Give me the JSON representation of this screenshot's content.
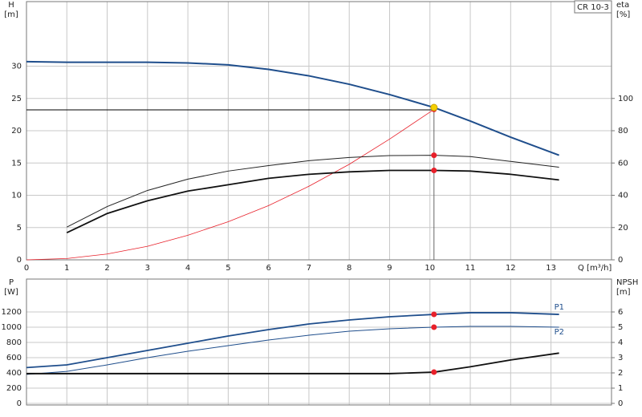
{
  "chart_data": [
    {
      "type": "line",
      "model": "CR 10-3",
      "ylabel": "H",
      "yunit": "[m]",
      "y2label": "eta",
      "y2unit": "[%]",
      "xlabel": "Q [m³/h]",
      "xlim": [
        0,
        14.5
      ],
      "xticks": [
        0,
        1,
        2,
        3,
        4,
        5,
        6,
        7,
        8,
        9,
        10,
        11,
        12,
        13
      ],
      "ylim": [
        0,
        40
      ],
      "yticks": [
        0,
        5,
        10,
        15,
        20,
        25,
        30
      ],
      "y2lim": [
        0,
        160
      ],
      "y2ticks": [
        0,
        20,
        40,
        60,
        80,
        100
      ],
      "grid": true,
      "highlight_x": 10.1,
      "highlight_color": "#e8202a",
      "duty_point": {
        "x": 10.1,
        "y": 23.6,
        "color": "#f5d000"
      },
      "series": [
        {
          "color": "#1f4e8c",
          "width": 2,
          "x": [
            0,
            1,
            2,
            3,
            4,
            5,
            6,
            7,
            8,
            9,
            10.1,
            11,
            12,
            13.2
          ],
          "values": [
            30.7,
            30.6,
            30.6,
            30.6,
            30.5,
            30.2,
            29.5,
            28.5,
            27.2,
            25.6,
            23.6,
            21.5,
            19.0,
            16.2
          ]
        },
        {
          "color": "#e8202a",
          "width": 0.8,
          "x": [
            0,
            1,
            2,
            3,
            4,
            5,
            6,
            7,
            8,
            9,
            10.1
          ],
          "values": [
            0,
            0.2,
            0.9,
            2.1,
            3.8,
            5.9,
            8.4,
            11.4,
            14.8,
            18.7,
            23.3
          ]
        },
        {
          "color": "#222222",
          "width": 1,
          "axis": "y2",
          "x": [
            1,
            2,
            3,
            4,
            5,
            6,
            7,
            8,
            9,
            10.1,
            11,
            12,
            13.2
          ],
          "values": [
            20.3,
            33,
            43,
            50,
            55,
            58.4,
            61.4,
            63.4,
            64.6,
            64.8,
            64,
            61,
            57.4
          ]
        },
        {
          "color": "#111111",
          "width": 1.8,
          "axis": "y2",
          "x": [
            1,
            2,
            3,
            4,
            5,
            6,
            7,
            8,
            9,
            10.1,
            11,
            12,
            13.2
          ],
          "values": [
            16.8,
            28.7,
            36.6,
            42.6,
            46.5,
            50.5,
            53,
            54.5,
            55.4,
            55.4,
            55,
            53,
            49.5
          ]
        }
      ]
    },
    {
      "type": "line",
      "ylabel": "P",
      "yunit": "[W]",
      "y2label": "NPSH",
      "y2unit": "[m]",
      "xlim": [
        0,
        14.5
      ],
      "xticks": [
        0,
        1,
        2,
        3,
        4,
        5,
        6,
        7,
        8,
        9,
        10,
        11,
        12,
        13
      ],
      "ylim": [
        0,
        1600
      ],
      "yticks": [
        0,
        200,
        400,
        600,
        800,
        1000,
        1200
      ],
      "y2lim": [
        0,
        8
      ],
      "y2ticks": [
        0,
        1,
        2,
        3,
        4,
        5,
        6
      ],
      "grid": true,
      "highlight_x": 10.1,
      "highlight_color": "#e8202a",
      "series": [
        {
          "name": "P1",
          "color": "#1f4e8c",
          "width": 1.8,
          "x": [
            0,
            1,
            2,
            3,
            4,
            5,
            6,
            7,
            8,
            9,
            10.1,
            11,
            12,
            13.2
          ],
          "values": [
            470,
            505,
            600,
            695,
            790,
            884,
            968,
            1042,
            1095,
            1137,
            1168,
            1190,
            1190,
            1168
          ]
        },
        {
          "name": "P2",
          "color": "#1f4e8c",
          "width": 1,
          "x": [
            0,
            1,
            2,
            3,
            4,
            5,
            6,
            7,
            8,
            9,
            10.1,
            11,
            12,
            13.2
          ],
          "values": [
            380,
            420,
            505,
            600,
            684,
            758,
            832,
            895,
            947,
            979,
            1000,
            1011,
            1011,
            1000
          ]
        },
        {
          "color": "#111111",
          "width": 1.8,
          "axis": "y2",
          "x": [
            0,
            1,
            2,
            3,
            4,
            5,
            6,
            7,
            8,
            9,
            10.1,
            11,
            12,
            13.2
          ],
          "values": [
            1.95,
            1.95,
            1.95,
            1.95,
            1.95,
            1.95,
            1.95,
            1.95,
            1.95,
            1.95,
            2.05,
            2.4,
            2.85,
            3.3
          ]
        }
      ]
    }
  ]
}
